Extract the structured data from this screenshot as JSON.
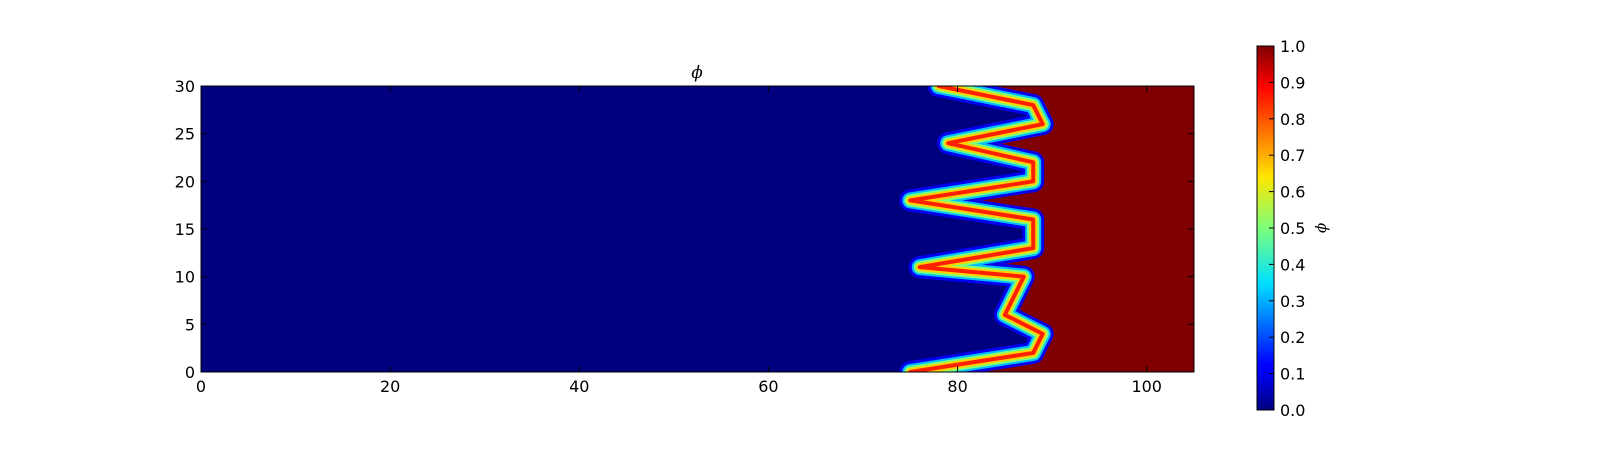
{
  "chart_data": {
    "type": "heatmap",
    "title": "ϕ",
    "colormap": "jet",
    "xlim": [
      0,
      105
    ],
    "ylim": [
      0,
      30
    ],
    "vrange": [
      0,
      1
    ],
    "xticks": [
      "0",
      "20",
      "40",
      "60",
      "80",
      "100"
    ],
    "yticks": [
      "0",
      "5",
      "10",
      "15",
      "20",
      "25",
      "30"
    ],
    "colorbar": {
      "label": "ϕ",
      "ticks": [
        "0.0",
        "0.1",
        "0.2",
        "0.3",
        "0.4",
        "0.5",
        "0.6",
        "0.7",
        "0.8",
        "0.9",
        "1.0"
      ]
    },
    "interface_front": {
      "description_points": [
        {
          "y": 0,
          "x": 75
        },
        {
          "y": 2,
          "x": 88
        },
        {
          "y": 4,
          "x": 89
        },
        {
          "y": 6,
          "x": 85
        },
        {
          "y": 8,
          "x": 86
        },
        {
          "y": 10,
          "x": 87
        },
        {
          "y": 11,
          "x": 76
        },
        {
          "y": 13,
          "x": 88
        },
        {
          "y": 16,
          "x": 88
        },
        {
          "y": 18,
          "x": 75
        },
        {
          "y": 20,
          "x": 88
        },
        {
          "y": 22,
          "x": 88
        },
        {
          "y": 24,
          "x": 79
        },
        {
          "y": 26,
          "x": 89
        },
        {
          "y": 28,
          "x": 88
        },
        {
          "y": 30,
          "x": 78
        }
      ],
      "left_value": 0.0,
      "right_value": 1.0,
      "right_far_value": 0.98
    }
  }
}
